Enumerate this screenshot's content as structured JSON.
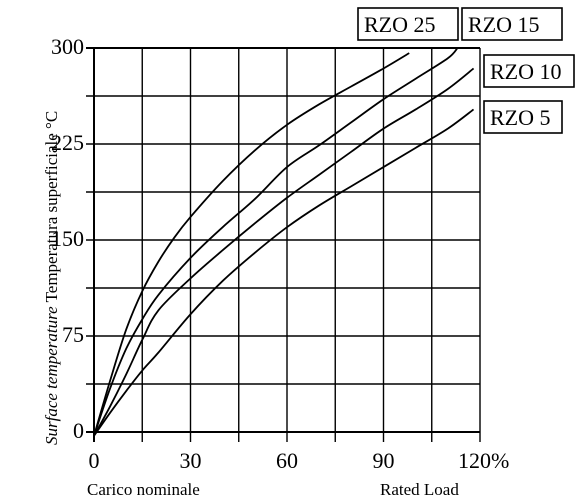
{
  "chart_data": {
    "type": "line",
    "title": "",
    "xlabel_left": "Carico nominale",
    "xlabel_right": "Rated Load",
    "ylabel_italic": "Surface temperature",
    "ylabel_regular": "Temperatura superficiale",
    "yunit": "°C",
    "xlim": [
      0,
      120
    ],
    "ylim": [
      0,
      300
    ],
    "x_ticks": [
      "0",
      "30",
      "60",
      "90",
      "120%"
    ],
    "y_ticks": [
      "0",
      "75",
      "150",
      "225",
      "300"
    ],
    "grid": true,
    "series": [
      {
        "name": "RZO 25",
        "x": [
          0,
          5,
          10,
          15,
          20,
          25,
          30,
          40,
          50,
          60,
          70,
          80,
          90,
          98
        ],
        "y": [
          -3,
          40,
          80,
          110,
          133,
          152,
          168,
          196,
          220,
          240,
          256,
          270,
          284,
          296
        ]
      },
      {
        "name": "RZO 15",
        "x": [
          0,
          5,
          10,
          15,
          20,
          30,
          40,
          50,
          60,
          70,
          80,
          90,
          100,
          110,
          113
        ],
        "y": [
          -3,
          34,
          65,
          88,
          107,
          136,
          160,
          182,
          207,
          224,
          242,
          260,
          276,
          292,
          300
        ]
      },
      {
        "name": "RZO 10",
        "x": [
          0,
          5,
          10,
          15,
          20,
          30,
          40,
          50,
          60,
          70,
          80,
          90,
          100,
          110,
          118
        ],
        "y": [
          -3,
          20,
          45,
          72,
          95,
          120,
          142,
          163,
          183,
          201,
          219,
          237,
          252,
          268,
          284
        ]
      },
      {
        "name": "RZO 5",
        "x": [
          0,
          5,
          10,
          15,
          20,
          30,
          40,
          50,
          60,
          70,
          80,
          90,
          100,
          110,
          118
        ],
        "y": [
          -3,
          15,
          32,
          48,
          62,
          92,
          118,
          140,
          160,
          177,
          192,
          207,
          222,
          237,
          252
        ]
      }
    ],
    "label_boxes": [
      "RZO 25",
      "RZO 15",
      "RZO 10",
      "RZO 5"
    ]
  }
}
